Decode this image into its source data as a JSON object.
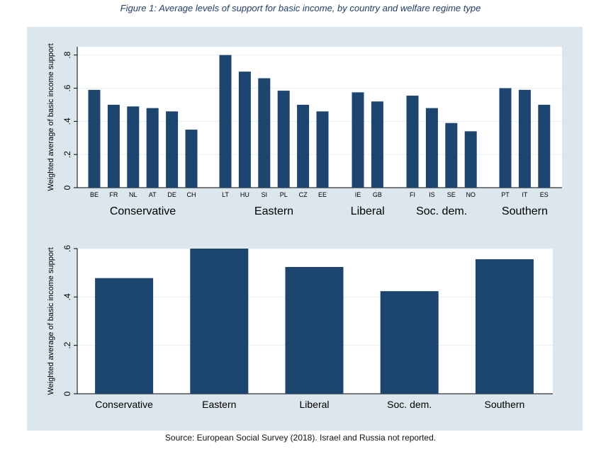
{
  "caption": "Figure 1: Average levels of support for basic income, by country and welfare regime type",
  "source": "Source: European Social Survey (2018). Israel and Russia not reported.",
  "colors": {
    "bar": "#1c4670",
    "panel": "#dbe7ec",
    "plot_bg": "#ffffff",
    "grid": "#e6eef2"
  },
  "chart_data": [
    {
      "type": "bar",
      "ylabel": "Weighted average of basic income support",
      "ylim": [
        0,
        0.85
      ],
      "yticks": [
        0,
        0.2,
        0.4,
        0.6,
        0.8
      ],
      "ytick_labels": [
        "0",
        ".2",
        ".4",
        ".6",
        ".8"
      ],
      "grid": true,
      "groups": [
        {
          "name": "Conservative",
          "countries": [
            "BE",
            "FR",
            "NL",
            "AT",
            "DE",
            "CH"
          ],
          "values": [
            0.59,
            0.5,
            0.49,
            0.48,
            0.46,
            0.35
          ]
        },
        {
          "name": "Eastern",
          "countries": [
            "LT",
            "HU",
            "SI",
            "PL",
            "CZ",
            "EE"
          ],
          "values": [
            0.8,
            0.7,
            0.66,
            0.585,
            0.5,
            0.46
          ]
        },
        {
          "name": "Liberal",
          "countries": [
            "IE",
            "GB"
          ],
          "values": [
            0.575,
            0.52
          ]
        },
        {
          "name": "Soc. dem.",
          "countries": [
            "FI",
            "IS",
            "SE",
            "NO"
          ],
          "values": [
            0.555,
            0.48,
            0.39,
            0.34
          ]
        },
        {
          "name": "Southern",
          "countries": [
            "PT",
            "IT",
            "ES"
          ],
          "values": [
            0.6,
            0.59,
            0.5
          ]
        }
      ]
    },
    {
      "type": "bar",
      "ylabel": "Weighted average of basic income support",
      "ylim": [
        0,
        0.6
      ],
      "yticks": [
        0,
        0.2,
        0.4,
        0.6
      ],
      "ytick_labels": [
        "0",
        ".2",
        ".4",
        ".6"
      ],
      "grid": true,
      "categories": [
        "Conservative",
        "Eastern",
        "Liberal",
        "Soc. dem.",
        "Southern"
      ],
      "values": [
        0.478,
        0.6,
        0.524,
        0.424,
        0.556
      ]
    }
  ]
}
